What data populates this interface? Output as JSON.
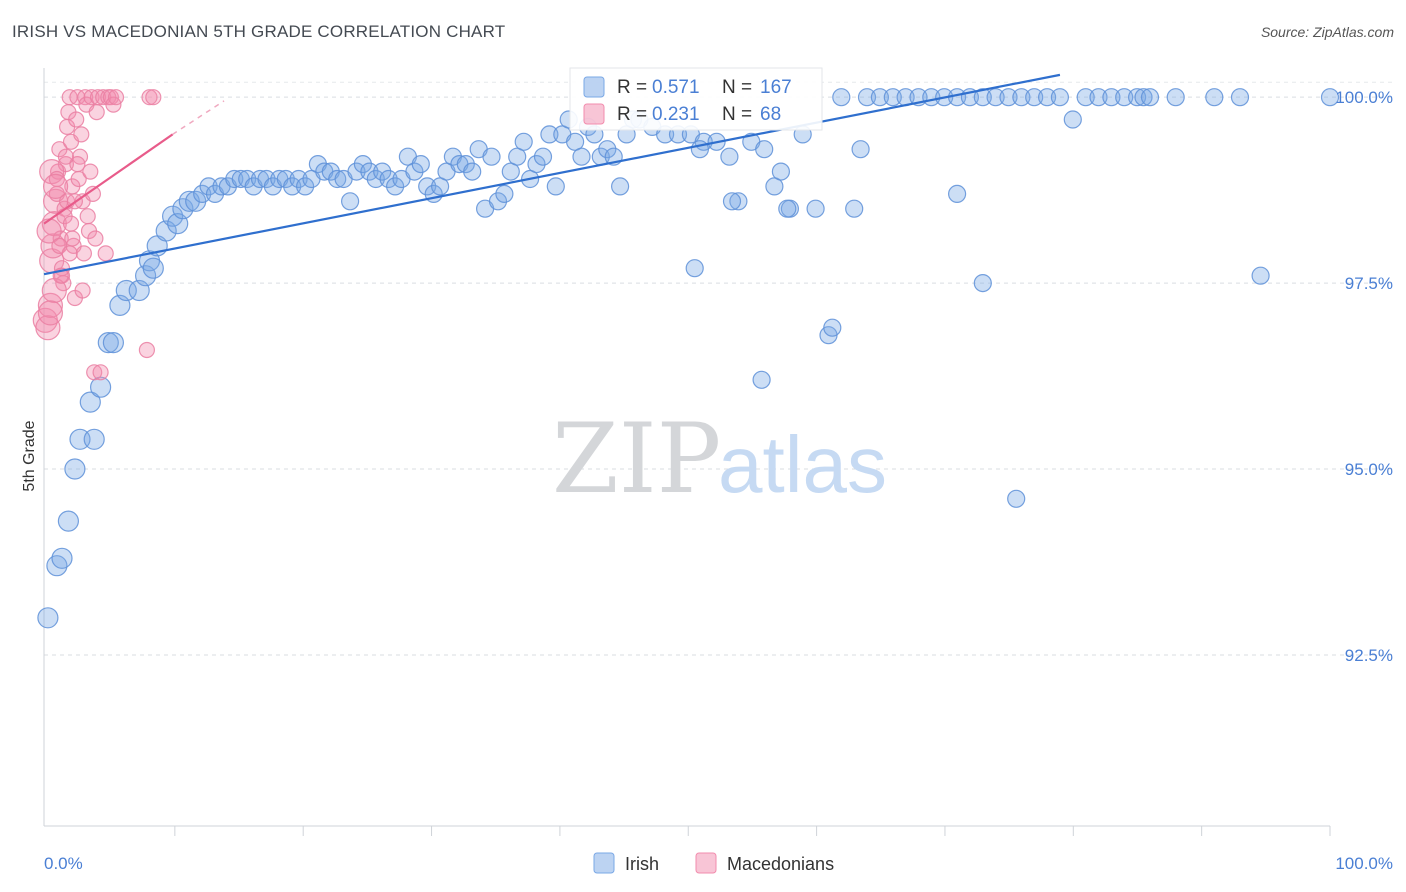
{
  "header": {
    "title": "IRISH VS MACEDONIAN 5TH GRADE CORRELATION CHART",
    "source": "Source: ZipAtlas.com"
  },
  "chart_data": {
    "type": "scatter",
    "title": "IRISH VS MACEDONIAN 5TH GRADE CORRELATION CHART",
    "xlabel": "",
    "ylabel": "5th Grade",
    "xlim": [
      0,
      100
    ],
    "ylim": [
      90.2,
      100.5
    ],
    "x_tick_labels": [
      {
        "value": 0,
        "label": "0.0%"
      },
      {
        "value": 100,
        "label": "100.0%"
      }
    ],
    "x_minor_ticks": [
      10,
      20,
      30,
      40,
      50,
      60,
      70,
      80,
      90,
      100
    ],
    "y_ticks": [
      {
        "value": 100.0,
        "label": "100.0%"
      },
      {
        "value": 97.5,
        "label": "97.5%"
      },
      {
        "value": 95.0,
        "label": "95.0%"
      },
      {
        "value": 92.5,
        "label": "92.5%"
      }
    ],
    "grid": true,
    "legend_position": "bottom-center",
    "watermark": {
      "zip": "ZIP",
      "atlas": "atlas"
    },
    "series": [
      {
        "name": "Irish",
        "color": "#7aa8e6",
        "line_color": "#2f6fce",
        "R": "0.571",
        "N": "167",
        "trend": {
          "x0": 0,
          "y0": 97.62,
          "x1": 79,
          "y1": 100.3,
          "dashed_to": null
        },
        "points": [
          [
            0.3,
            93.0
          ],
          [
            1.0,
            93.7
          ],
          [
            1.4,
            93.8
          ],
          [
            1.9,
            94.3
          ],
          [
            2.4,
            95.0
          ],
          [
            2.8,
            95.4
          ],
          [
            3.6,
            95.9
          ],
          [
            3.9,
            95.4
          ],
          [
            4.4,
            96.1
          ],
          [
            5.0,
            96.7
          ],
          [
            5.4,
            96.7
          ],
          [
            5.9,
            97.2
          ],
          [
            6.4,
            97.4
          ],
          [
            7.4,
            97.4
          ],
          [
            7.9,
            97.6
          ],
          [
            8.2,
            97.8
          ],
          [
            8.5,
            97.7
          ],
          [
            8.8,
            98.0
          ],
          [
            9.5,
            98.2
          ],
          [
            10.0,
            98.4
          ],
          [
            10.4,
            98.3
          ],
          [
            10.8,
            98.5
          ],
          [
            11.3,
            98.6
          ],
          [
            11.8,
            98.6
          ],
          [
            12.3,
            98.7
          ],
          [
            12.8,
            98.8
          ],
          [
            13.3,
            98.7
          ],
          [
            13.8,
            98.8
          ],
          [
            14.3,
            98.8
          ],
          [
            14.8,
            98.9
          ],
          [
            15.3,
            98.9
          ],
          [
            15.8,
            98.9
          ],
          [
            16.3,
            98.8
          ],
          [
            16.8,
            98.9
          ],
          [
            17.3,
            98.9
          ],
          [
            17.8,
            98.8
          ],
          [
            18.3,
            98.9
          ],
          [
            18.8,
            98.9
          ],
          [
            19.3,
            98.8
          ],
          [
            19.8,
            98.9
          ],
          [
            20.3,
            98.8
          ],
          [
            20.8,
            98.9
          ],
          [
            21.3,
            99.1
          ],
          [
            21.8,
            99.0
          ],
          [
            22.3,
            99.0
          ],
          [
            22.8,
            98.9
          ],
          [
            23.3,
            98.9
          ],
          [
            23.8,
            98.6
          ],
          [
            24.3,
            99.0
          ],
          [
            24.8,
            99.1
          ],
          [
            25.3,
            99.0
          ],
          [
            25.8,
            98.9
          ],
          [
            26.3,
            99.0
          ],
          [
            26.8,
            98.9
          ],
          [
            27.3,
            98.8
          ],
          [
            27.8,
            98.9
          ],
          [
            28.3,
            99.2
          ],
          [
            28.8,
            99.0
          ],
          [
            29.3,
            99.1
          ],
          [
            29.8,
            98.8
          ],
          [
            30.3,
            98.7
          ],
          [
            30.8,
            98.8
          ],
          [
            31.3,
            99.0
          ],
          [
            31.8,
            99.2
          ],
          [
            32.3,
            99.1
          ],
          [
            32.8,
            99.1
          ],
          [
            33.3,
            99.0
          ],
          [
            33.8,
            99.3
          ],
          [
            34.3,
            98.5
          ],
          [
            34.8,
            99.2
          ],
          [
            35.3,
            98.6
          ],
          [
            35.8,
            98.7
          ],
          [
            36.3,
            99.0
          ],
          [
            36.8,
            99.2
          ],
          [
            37.3,
            99.4
          ],
          [
            37.8,
            98.9
          ],
          [
            38.3,
            99.1
          ],
          [
            38.8,
            99.2
          ],
          [
            39.3,
            99.5
          ],
          [
            39.8,
            98.8
          ],
          [
            40.3,
            99.5
          ],
          [
            40.8,
            99.7
          ],
          [
            41.3,
            99.4
          ],
          [
            41.8,
            99.2
          ],
          [
            42.3,
            99.6
          ],
          [
            42.8,
            99.5
          ],
          [
            43.3,
            99.2
          ],
          [
            43.8,
            99.3
          ],
          [
            44.3,
            99.2
          ],
          [
            44.8,
            98.8
          ],
          [
            45.3,
            99.5
          ],
          [
            45.8,
            99.7
          ],
          [
            46.3,
            99.7
          ],
          [
            47.3,
            99.6
          ],
          [
            48.3,
            99.5
          ],
          [
            49.3,
            99.5
          ],
          [
            50.3,
            99.5
          ],
          [
            51.3,
            99.4
          ],
          [
            52.3,
            99.4
          ],
          [
            53.3,
            99.2
          ],
          [
            54.0,
            98.6
          ],
          [
            55.0,
            99.4
          ],
          [
            56.0,
            99.3
          ],
          [
            56.8,
            98.8
          ],
          [
            57.3,
            99.0
          ],
          [
            58.0,
            98.5
          ],
          [
            59.0,
            99.5
          ],
          [
            60.0,
            98.5
          ],
          [
            61.0,
            96.8
          ],
          [
            61.3,
            96.9
          ],
          [
            62.0,
            100.0
          ],
          [
            63.0,
            98.5
          ],
          [
            63.5,
            99.3
          ],
          [
            64.0,
            100.0
          ],
          [
            65.0,
            100.0
          ],
          [
            66.0,
            100.0
          ],
          [
            67.0,
            100.0
          ],
          [
            68.0,
            100.0
          ],
          [
            69.0,
            100.0
          ],
          [
            70.0,
            100.0
          ],
          [
            71.0,
            100.0
          ],
          [
            72.0,
            100.0
          ],
          [
            73.0,
            100.0
          ],
          [
            74.0,
            100.0
          ],
          [
            75.0,
            100.0
          ],
          [
            76.0,
            100.0
          ],
          [
            77.0,
            100.0
          ],
          [
            78.0,
            100.0
          ],
          [
            79.0,
            100.0
          ],
          [
            80.0,
            99.7
          ],
          [
            81.0,
            100.0
          ],
          [
            82.0,
            100.0
          ],
          [
            83.0,
            100.0
          ],
          [
            84.0,
            100.0
          ],
          [
            85.0,
            100.0
          ],
          [
            85.5,
            100.0
          ],
          [
            86.0,
            100.0
          ],
          [
            88.0,
            100.0
          ],
          [
            91.0,
            100.0
          ],
          [
            93.0,
            100.0
          ],
          [
            94.6,
            97.6
          ],
          [
            100.0,
            100.0
          ],
          [
            50.6,
            97.7
          ],
          [
            55.8,
            96.2
          ],
          [
            73.0,
            97.5
          ],
          [
            75.6,
            94.6
          ],
          [
            71.0,
            98.7
          ],
          [
            53.5,
            98.6
          ],
          [
            57.8,
            98.5
          ],
          [
            51.0,
            99.3
          ]
        ]
      },
      {
        "name": "Macedonians",
        "color": "#f28cad",
        "line_color": "#e85b8a",
        "R": "0.231",
        "N": "68",
        "trend": {
          "x0": 0,
          "y0": 98.3,
          "x1": 10,
          "y1": 99.5,
          "dashed_to": [
            14,
            99.95
          ]
        },
        "points": [
          [
            0.1,
            97.0
          ],
          [
            0.3,
            96.9
          ],
          [
            0.5,
            97.2
          ],
          [
            0.6,
            97.8
          ],
          [
            0.7,
            98.0
          ],
          [
            0.8,
            98.3
          ],
          [
            0.9,
            98.6
          ],
          [
            1.0,
            98.7
          ],
          [
            1.1,
            99.0
          ],
          [
            1.2,
            99.3
          ],
          [
            1.3,
            98.1
          ],
          [
            1.4,
            97.6
          ],
          [
            1.5,
            97.5
          ],
          [
            1.6,
            98.5
          ],
          [
            1.7,
            99.1
          ],
          [
            1.8,
            99.6
          ],
          [
            1.9,
            99.8
          ],
          [
            2.0,
            100.0
          ],
          [
            2.1,
            99.4
          ],
          [
            2.2,
            98.8
          ],
          [
            2.3,
            98.0
          ],
          [
            2.4,
            97.3
          ],
          [
            2.5,
            99.7
          ],
          [
            2.6,
            100.0
          ],
          [
            2.7,
            98.9
          ],
          [
            2.8,
            99.2
          ],
          [
            2.9,
            99.5
          ],
          [
            3.0,
            98.6
          ],
          [
            3.1,
            97.9
          ],
          [
            3.2,
            100.0
          ],
          [
            3.3,
            99.9
          ],
          [
            3.4,
            98.4
          ],
          [
            3.5,
            98.2
          ],
          [
            3.6,
            99.0
          ],
          [
            3.7,
            100.0
          ],
          [
            3.8,
            98.7
          ],
          [
            3.9,
            96.3
          ],
          [
            4.0,
            98.1
          ],
          [
            4.1,
            99.8
          ],
          [
            4.2,
            100.0
          ],
          [
            4.4,
            96.3
          ],
          [
            4.6,
            100.0
          ],
          [
            4.8,
            97.9
          ],
          [
            5.0,
            100.0
          ],
          [
            5.2,
            100.0
          ],
          [
            5.4,
            99.9
          ],
          [
            5.6,
            100.0
          ],
          [
            0.4,
            98.2
          ],
          [
            0.6,
            99.0
          ],
          [
            0.8,
            97.4
          ],
          [
            1.0,
            98.9
          ],
          [
            1.2,
            98.0
          ],
          [
            1.4,
            97.7
          ],
          [
            1.6,
            98.4
          ],
          [
            1.8,
            98.6
          ],
          [
            2.0,
            97.9
          ],
          [
            2.2,
            98.1
          ],
          [
            2.4,
            98.6
          ],
          [
            2.6,
            99.1
          ],
          [
            8.0,
            96.6
          ],
          [
            8.2,
            100.0
          ],
          [
            8.5,
            100.0
          ],
          [
            0.5,
            97.1
          ],
          [
            0.9,
            98.8
          ],
          [
            1.3,
            97.6
          ],
          [
            1.7,
            99.2
          ],
          [
            2.1,
            98.3
          ],
          [
            3.0,
            97.4
          ]
        ]
      }
    ]
  }
}
